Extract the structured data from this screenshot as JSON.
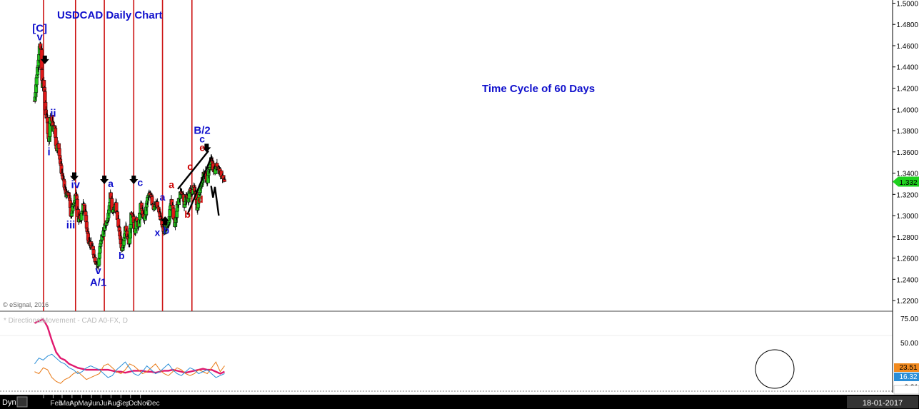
{
  "chart_data": {
    "type": "candlestick",
    "title": "USDCAD Daily Chart",
    "annotation_cycle": "Time Cycle of 60 Days",
    "copyright": "© eSignal, 2016",
    "price_axis": {
      "min": 1.21,
      "max": 1.503,
      "ticks": [
        "1.5000",
        "1.4800",
        "1.4600",
        "1.4400",
        "1.4200",
        "1.4000",
        "1.3800",
        "1.3600",
        "1.3400",
        "1.3200",
        "1.3000",
        "1.2800",
        "1.2600",
        "1.2400",
        "1.2200"
      ],
      "last_price": "1.332"
    },
    "months": [
      "Feb",
      "Mar",
      "Apr",
      "May",
      "Jun",
      "Jul",
      "Aug",
      "Sep",
      "Oct",
      "Nov",
      "Dec"
    ],
    "date_badge": "18-01-2017",
    "dyn_label": "Dyn",
    "cycle_line_days": [
      0,
      100,
      190,
      282,
      372,
      464
    ],
    "price_path": [
      [
        -28,
        1.408
      ],
      [
        -20,
        1.435
      ],
      [
        -12,
        1.46
      ],
      [
        -8,
        1.456
      ],
      [
        -4,
        1.418
      ],
      [
        0,
        1.428
      ],
      [
        6,
        1.4
      ],
      [
        12,
        1.387
      ],
      [
        17,
        1.368
      ],
      [
        21,
        1.393
      ],
      [
        26,
        1.392
      ],
      [
        30,
        1.381
      ],
      [
        35,
        1.385
      ],
      [
        40,
        1.362
      ],
      [
        47,
        1.367
      ],
      [
        54,
        1.345
      ],
      [
        61,
        1.334
      ],
      [
        68,
        1.322
      ],
      [
        75,
        1.318
      ],
      [
        80,
        1.32
      ],
      [
        85,
        1.3
      ],
      [
        92,
        1.308
      ],
      [
        97,
        1.316
      ],
      [
        100,
        1.322
      ],
      [
        104,
        1.312
      ],
      [
        110,
        1.296
      ],
      [
        118,
        1.298
      ],
      [
        124,
        1.31
      ],
      [
        130,
        1.305
      ],
      [
        136,
        1.285
      ],
      [
        142,
        1.276
      ],
      [
        148,
        1.272
      ],
      [
        154,
        1.268
      ],
      [
        160,
        1.26
      ],
      [
        166,
        1.255
      ],
      [
        171,
        1.252
      ],
      [
        176,
        1.268
      ],
      [
        182,
        1.28
      ],
      [
        188,
        1.285
      ],
      [
        194,
        1.292
      ],
      [
        200,
        1.298
      ],
      [
        206,
        1.31
      ],
      [
        210,
        1.322
      ],
      [
        214,
        1.306
      ],
      [
        220,
        1.305
      ],
      [
        226,
        1.31
      ],
      [
        232,
        1.295
      ],
      [
        238,
        1.282
      ],
      [
        244,
        1.266
      ],
      [
        250,
        1.275
      ],
      [
        256,
        1.29
      ],
      [
        262,
        1.28
      ],
      [
        268,
        1.272
      ],
      [
        274,
        1.3
      ],
      [
        280,
        1.298
      ],
      [
        286,
        1.285
      ],
      [
        292,
        1.298
      ],
      [
        298,
        1.29
      ],
      [
        304,
        1.312
      ],
      [
        310,
        1.3
      ],
      [
        316,
        1.295
      ],
      [
        322,
        1.31
      ],
      [
        328,
        1.322
      ],
      [
        334,
        1.32
      ],
      [
        340,
        1.312
      ],
      [
        346,
        1.305
      ],
      [
        352,
        1.315
      ],
      [
        358,
        1.305
      ],
      [
        364,
        1.3
      ],
      [
        370,
        1.295
      ],
      [
        376,
        1.282
      ],
      [
        382,
        1.292
      ],
      [
        388,
        1.29
      ],
      [
        394,
        1.3
      ],
      [
        400,
        1.316
      ],
      [
        406,
        1.3
      ],
      [
        412,
        1.29
      ],
      [
        418,
        1.308
      ],
      [
        424,
        1.316
      ],
      [
        430,
        1.322
      ],
      [
        436,
        1.32
      ],
      [
        440,
        1.31
      ],
      [
        446,
        1.318
      ],
      [
        452,
        1.314
      ],
      [
        458,
        1.324
      ],
      [
        464,
        1.32
      ],
      [
        470,
        1.327
      ],
      [
        476,
        1.322
      ],
      [
        481,
        1.305
      ],
      [
        487,
        1.32
      ],
      [
        493,
        1.33
      ],
      [
        500,
        1.338
      ],
      [
        506,
        1.342
      ],
      [
        512,
        1.33
      ],
      [
        518,
        1.345
      ],
      [
        524,
        1.352
      ],
      [
        530,
        1.345
      ],
      [
        536,
        1.342
      ],
      [
        542,
        1.348
      ],
      [
        548,
        1.345
      ],
      [
        554,
        1.34
      ],
      [
        560,
        1.336
      ],
      [
        566,
        1.33
      ]
    ],
    "wave_labels": [
      {
        "t": "[C]",
        "day": -12,
        "price": 1.473,
        "color": "#1010cc",
        "size": 15
      },
      {
        "t": "v",
        "day": -12,
        "price": 1.465,
        "color": "#1010cc",
        "size": 15
      },
      {
        "t": "i",
        "day": 17,
        "price": 1.357,
        "color": "#1010cc",
        "size": 15
      },
      {
        "t": "ii",
        "day": 30,
        "price": 1.393,
        "color": "#1010cc",
        "size": 15
      },
      {
        "t": "iv",
        "day": 100,
        "price": 1.326,
        "color": "#1010cc",
        "size": 15
      },
      {
        "t": "iii",
        "day": 85,
        "price": 1.288,
        "color": "#1010cc",
        "size": 15
      },
      {
        "t": "v",
        "day": 171,
        "price": 1.245,
        "color": "#1010cc",
        "size": 15
      },
      {
        "t": "A/1",
        "day": 171,
        "price": 1.234,
        "color": "#1010cc",
        "size": 15
      },
      {
        "t": "a",
        "day": 210,
        "price": 1.327,
        "color": "#1010cc",
        "size": 14
      },
      {
        "t": "b",
        "day": 244,
        "price": 1.259,
        "color": "#1010cc",
        "size": 14
      },
      {
        "t": "c",
        "day": 302,
        "price": 1.328,
        "color": "#1010cc",
        "size": 14
      },
      {
        "t": "a",
        "day": 372,
        "price": 1.314,
        "color": "#1010cc",
        "size": 14
      },
      {
        "t": "x",
        "day": 356,
        "price": 1.281,
        "color": "#1010cc",
        "size": 14
      },
      {
        "t": "b",
        "day": 384,
        "price": 1.283,
        "color": "#1010cc",
        "size": 14
      },
      {
        "t": "a",
        "day": 400,
        "price": 1.326,
        "color": "#cc0000",
        "size": 14
      },
      {
        "t": "b",
        "day": 450,
        "price": 1.298,
        "color": "#cc0000",
        "size": 14
      },
      {
        "t": "c",
        "day": 458,
        "price": 1.343,
        "color": "#cc0000",
        "size": 14
      },
      {
        "t": "d",
        "day": 490,
        "price": 1.312,
        "color": "#cc0000",
        "size": 14
      },
      {
        "t": "e",
        "day": 496,
        "price": 1.361,
        "color": "#cc0000",
        "size": 14
      },
      {
        "t": "c",
        "day": 496,
        "price": 1.369,
        "color": "#1010cc",
        "size": 14
      },
      {
        "t": "B/2",
        "day": 496,
        "price": 1.377,
        "color": "#1010cc",
        "size": 15
      }
    ],
    "arrows_down": [
      [
        4,
        1.446
      ],
      [
        96,
        1.336
      ],
      [
        190,
        1.333
      ],
      [
        282,
        1.333
      ],
      [
        510,
        1.363
      ]
    ],
    "arrows_up": [
      [
        380,
        1.296
      ]
    ],
    "trendlines": [
      [
        [
          420,
          1.325
        ],
        [
          516,
          1.361
        ]
      ],
      [
        [
          450,
          1.301
        ],
        [
          526,
          1.356
        ]
      ]
    ],
    "projection": [
      [
        524,
        1.328
      ],
      [
        530,
        1.317
      ],
      [
        536,
        1.327
      ],
      [
        548,
        1.3
      ]
    ],
    "indicator": {
      "title": "* DirectionalMovement - CAD A0-FX, D",
      "axis_ticks": [
        "75.00",
        "50.00",
        "0.31"
      ],
      "values": [
        "23.51",
        "16.32"
      ],
      "series": [
        {
          "name": "ADX",
          "color": "#e0186e",
          "values": [
            70,
            72,
            74,
            66,
            52,
            40,
            34,
            32,
            28,
            26,
            24,
            23,
            22,
            22,
            22,
            22,
            22,
            22,
            21,
            20,
            20,
            19,
            20,
            21,
            21,
            21,
            20,
            20,
            19,
            20,
            21,
            21,
            22,
            21,
            20,
            19,
            20,
            21,
            22,
            23,
            22,
            22,
            20,
            18,
            20
          ]
        },
        {
          "name": "+DI",
          "color": "#e87a17",
          "values": [
            20,
            18,
            24,
            22,
            14,
            10,
            8,
            12,
            14,
            18,
            20,
            16,
            12,
            14,
            16,
            18,
            26,
            28,
            24,
            20,
            18,
            22,
            28,
            26,
            22,
            18,
            20,
            24,
            28,
            22,
            18,
            16,
            20,
            24,
            22,
            18,
            16,
            18,
            22,
            20,
            18,
            24,
            30,
            20,
            26
          ]
        },
        {
          "name": "-DI",
          "color": "#2a8ed8",
          "values": [
            28,
            34,
            32,
            36,
            38,
            34,
            30,
            28,
            24,
            22,
            18,
            20,
            24,
            26,
            24,
            22,
            18,
            14,
            16,
            22,
            26,
            30,
            24,
            18,
            16,
            20,
            26,
            22,
            18,
            20,
            24,
            28,
            22,
            18,
            16,
            20,
            24,
            22,
            18,
            20,
            22,
            18,
            14,
            16,
            18
          ]
        }
      ]
    }
  }
}
